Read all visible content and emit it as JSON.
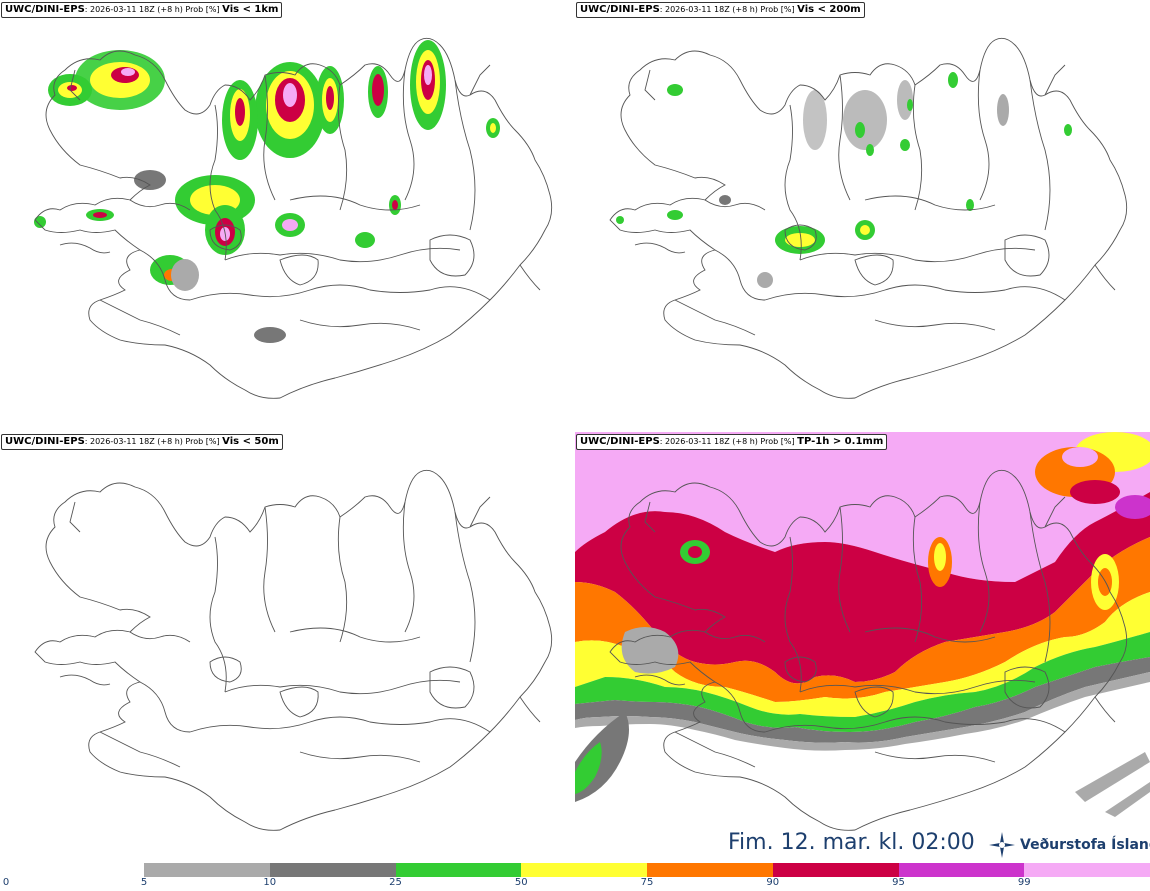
{
  "panels": [
    {
      "model": "UWC/DINI-EPS",
      "meta": ": 2026-03-11 18Z (+8 h) Prob [%] ",
      "threshold": "Vis < 1km"
    },
    {
      "model": "UWC/DINI-EPS",
      "meta": ": 2026-03-11 18Z (+8 h) Prob [%] ",
      "threshold": "Vis < 200m"
    },
    {
      "model": "UWC/DINI-EPS",
      "meta": ": 2026-03-11 18Z (+8 h) Prob [%] ",
      "threshold": "Vis < 50m"
    },
    {
      "model": "UWC/DINI-EPS",
      "meta": ": 2026-03-11 18Z (+8 h) Prob [%] ",
      "threshold": "TP-1h > 0.1mm"
    }
  ],
  "timestamp": "Fim. 12. mar. kl. 02:00",
  "logo": {
    "text": "Veðurstofa Íslands",
    "icon": "vedurstofa-star-icon"
  },
  "colorbar": {
    "ticks": [
      "0",
      "5",
      "10",
      "25",
      "50",
      "75",
      "90",
      "95",
      "99"
    ],
    "colors": [
      "#aaaaaa",
      "#777777",
      "#33cc33",
      "#ffff33",
      "#ff7700",
      "#cc0044",
      "#cc33cc",
      "#f5aaf5"
    ]
  }
}
